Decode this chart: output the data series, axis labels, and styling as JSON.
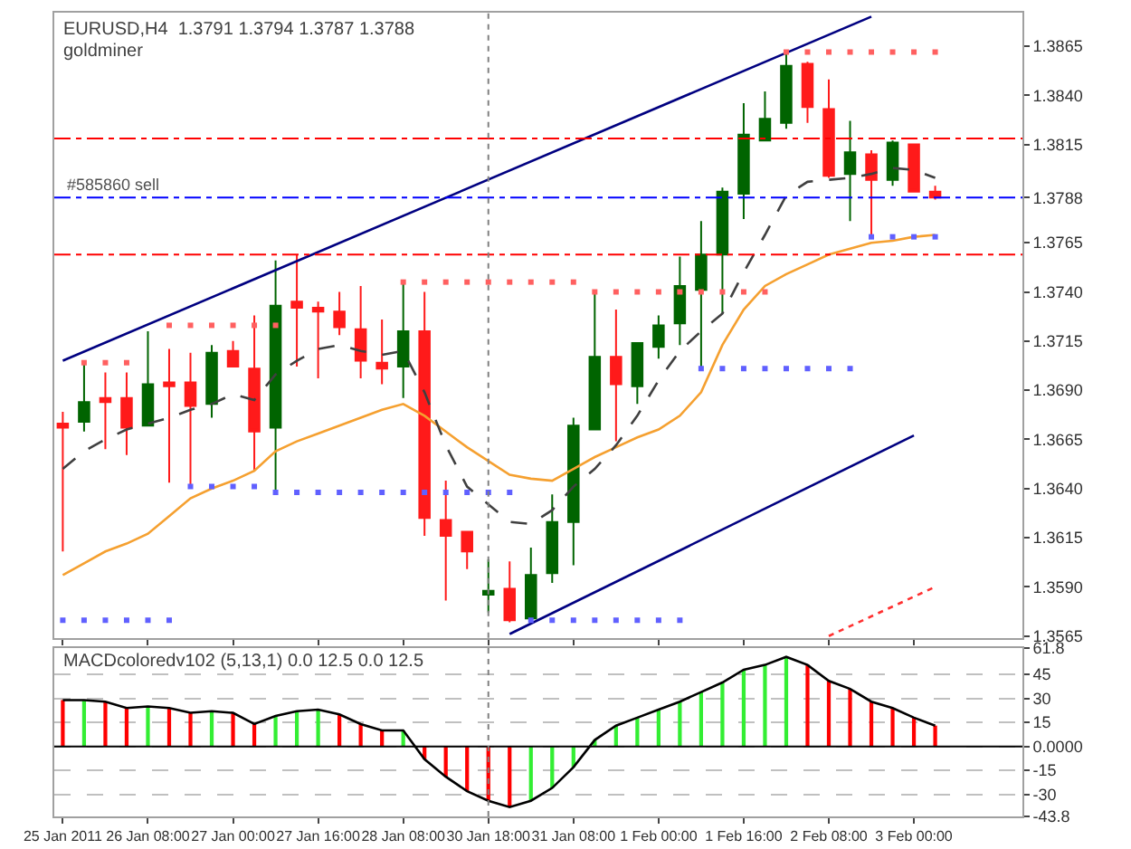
{
  "chart_data": [
    {
      "type": "candlestick",
      "title": "EURUSD,H4  1.3791 1.3794 1.3787 1.3788",
      "subtitle": "goldminer",
      "categories": [
        "25 Jan 2011",
        null,
        null,
        null,
        "26 Jan 08:00",
        null,
        null,
        null,
        "27 Jan 00:00",
        null,
        null,
        null,
        "27 Jan 16:00",
        null,
        null,
        null,
        "28 Jan 08:00",
        null,
        null,
        null,
        "30 Jan 18:00",
        null,
        null,
        null,
        "31 Jan 08:00",
        null,
        null,
        null,
        "1 Feb 00:00",
        null,
        null,
        null,
        "1 Feb 16:00",
        null,
        null,
        null,
        "2 Feb 08:00",
        null,
        null,
        null,
        "3 Feb 00:00",
        null
      ],
      "ohlc": [
        [
          1.3673,
          1.3679,
          1.3608,
          1.3671
        ],
        [
          1.3674,
          1.3704,
          1.3669,
          1.3684
        ],
        [
          1.3686,
          1.3699,
          1.366,
          1.3684
        ],
        [
          1.3686,
          1.3699,
          1.3657,
          1.3671
        ],
        [
          1.3672,
          1.372,
          1.3672,
          1.3693
        ],
        [
          1.3694,
          1.3711,
          1.3643,
          1.3692
        ],
        [
          1.3694,
          1.3709,
          1.3642,
          1.3682
        ],
        [
          1.3683,
          1.3713,
          1.3676,
          1.3709
        ],
        [
          1.371,
          1.3715,
          1.3702,
          1.3702
        ],
        [
          1.3701,
          1.3728,
          1.3649,
          1.3669
        ],
        [
          1.3671,
          1.3756,
          1.3638,
          1.3733
        ],
        [
          1.3735,
          1.3759,
          1.3702,
          1.3732
        ],
        [
          1.3732,
          1.3735,
          1.3696,
          1.373
        ],
        [
          1.373,
          1.374,
          1.3718,
          1.3722
        ],
        [
          1.3721,
          1.3743,
          1.3696,
          1.3705
        ],
        [
          1.3704,
          1.3726,
          1.3693,
          1.3701
        ],
        [
          1.3702,
          1.3745,
          1.3686,
          1.372
        ],
        [
          1.372,
          1.374,
          1.3616,
          1.3625
        ],
        [
          1.3624,
          1.3644,
          1.3583,
          1.3616
        ],
        [
          1.3618,
          1.3618,
          1.3599,
          1.3608
        ],
        [
          1.3586,
          1.3604,
          1.3577,
          1.3588
        ],
        [
          1.3589,
          1.3603,
          1.3572,
          1.3573
        ],
        [
          1.3574,
          1.361,
          1.3574,
          1.3596
        ],
        [
          1.3597,
          1.3637,
          1.3592,
          1.3623
        ],
        [
          1.3623,
          1.3676,
          1.3601,
          1.3672
        ],
        [
          1.367,
          1.374,
          1.367,
          1.3707
        ],
        [
          1.3707,
          1.3731,
          1.3664,
          1.3693
        ],
        [
          1.3692,
          1.3714,
          1.3683,
          1.3714
        ],
        [
          1.3712,
          1.3728,
          1.3706,
          1.3723
        ],
        [
          1.3724,
          1.3758,
          1.3713,
          1.3743
        ],
        [
          1.3741,
          1.3776,
          1.37,
          1.3759
        ],
        [
          1.3759,
          1.3793,
          1.3729,
          1.3791
        ],
        [
          1.379,
          1.3836,
          1.3777,
          1.382
        ],
        [
          1.3817,
          1.3842,
          1.3817,
          1.3828
        ],
        [
          1.3826,
          1.3862,
          1.3823,
          1.3855
        ],
        [
          1.3856,
          1.3857,
          1.3826,
          1.3834
        ],
        [
          1.3833,
          1.3848,
          1.3798,
          1.3799
        ],
        [
          1.38,
          1.3827,
          1.3776,
          1.3811
        ],
        [
          1.381,
          1.3812,
          1.3768,
          1.3797
        ],
        [
          1.3797,
          1.3817,
          1.3794,
          1.3816
        ],
        [
          1.3815,
          1.3815,
          1.3791,
          1.3791
        ],
        [
          1.3791,
          1.3794,
          1.3787,
          1.3788
        ]
      ],
      "colors": [
        "#ff1a1a",
        "#006400",
        "#ff1a1a",
        "#ff1a1a",
        "#006400",
        "#ff1a1a",
        "#ff1a1a",
        "#006400",
        "#ff1a1a",
        "#ff1a1a",
        "#006400",
        "#ff1a1a",
        "#ff1a1a",
        "#ff1a1a",
        "#ff1a1a",
        "#ff1a1a",
        "#006400",
        "#ff1a1a",
        "#ff1a1a",
        "#ff1a1a",
        "#006400",
        "#ff1a1a",
        "#006400",
        "#006400",
        "#006400",
        "#006400",
        "#ff1a1a",
        "#006400",
        "#006400",
        "#006400",
        "#006400",
        "#006400",
        "#006400",
        "#006400",
        "#006400",
        "#ff1a1a",
        "#ff1a1a",
        "#006400",
        "#ff1a1a",
        "#006400",
        "#ff1a1a",
        "#ff1a1a"
      ],
      "series": [
        {
          "type": "line",
          "color": "#f5a030",
          "line_style": "solid",
          "values": [
            1.3596,
            1.3602,
            1.3608,
            1.3612,
            1.3617,
            1.3626,
            1.3635,
            1.364,
            1.3644,
            1.3649,
            1.3659,
            1.3664,
            1.3668,
            1.3672,
            1.3676,
            1.368,
            1.3683,
            1.3677,
            1.3669,
            1.3661,
            1.3654,
            1.3647,
            1.3645,
            1.3644,
            1.365,
            1.3656,
            1.3661,
            1.3666,
            1.367,
            1.3677,
            1.3689,
            1.3713,
            1.3731,
            1.3743,
            1.3749,
            1.3754,
            1.3759,
            1.3762,
            1.3765,
            1.3766,
            1.3768,
            1.3769
          ]
        },
        {
          "type": "line",
          "color": "#404040",
          "line_style": "dashed",
          "values": [
            1.365,
            1.3659,
            1.3665,
            1.367,
            1.3673,
            1.3676,
            1.368,
            1.3683,
            1.3688,
            1.3685,
            1.3698,
            1.3705,
            1.3711,
            1.3713,
            1.371,
            1.3708,
            1.371,
            1.3689,
            1.3662,
            1.3641,
            1.3632,
            1.3623,
            1.3622,
            1.3629,
            1.3641,
            1.365,
            1.3662,
            1.3677,
            1.3695,
            1.371,
            1.372,
            1.3729,
            1.375,
            1.3769,
            1.3789,
            1.3796,
            1.3797,
            1.3798,
            1.38,
            1.3803,
            1.3802,
            1.3798
          ]
        },
        {
          "type": "line",
          "color": "#000080",
          "line_style": "solid",
          "values": [
            1.3705,
            null,
            null,
            null,
            null,
            null,
            null,
            null,
            null,
            null,
            null,
            null,
            null,
            null,
            null,
            null,
            null,
            null,
            null,
            null,
            null,
            null,
            null,
            null,
            null,
            null,
            null,
            null,
            null,
            null,
            null,
            null,
            null,
            null,
            null,
            null,
            null,
            null,
            1.388,
            null,
            null,
            null
          ]
        },
        {
          "type": "line",
          "color": "#000080",
          "line_style": "solid",
          "values": [
            null,
            null,
            null,
            null,
            null,
            null,
            null,
            null,
            null,
            null,
            null,
            null,
            null,
            null,
            null,
            null,
            null,
            null,
            null,
            null,
            null,
            1.3566,
            null,
            null,
            null,
            null,
            null,
            null,
            null,
            null,
            null,
            null,
            null,
            null,
            null,
            null,
            null,
            null,
            null,
            null,
            1.3667,
            null
          ]
        },
        {
          "type": "line",
          "color": "#ff3030",
          "line_style": "dotted",
          "values": [
            null,
            null,
            null,
            null,
            null,
            null,
            null,
            null,
            null,
            null,
            null,
            null,
            null,
            null,
            null,
            null,
            null,
            null,
            null,
            null,
            null,
            null,
            null,
            null,
            null,
            null,
            null,
            null,
            null,
            null,
            null,
            null,
            null,
            null,
            null,
            null,
            1.3565,
            null,
            null,
            null,
            null,
            1.359
          ]
        },
        {
          "type": "scatter",
          "color": "#ff6060",
          "marker": "square",
          "values": [
            null,
            1.3704,
            1.3704,
            1.3704,
            null,
            1.3723,
            1.3723,
            1.3723,
            1.3723,
            1.3723,
            1.3723,
            null,
            null,
            null,
            null,
            null,
            1.3745,
            1.3745,
            1.3745,
            1.3745,
            1.3745,
            1.3745,
            1.3745,
            1.3745,
            1.3745,
            1.374,
            1.374,
            1.374,
            1.374,
            1.374,
            1.374,
            1.374,
            1.374,
            1.374,
            1.3862,
            1.3862,
            1.3862,
            1.3862,
            1.3862,
            1.3862,
            1.3862,
            1.3862
          ]
        },
        {
          "type": "scatter",
          "color": "#6060ff",
          "marker": "square",
          "values": [
            1.3573,
            1.3573,
            1.3573,
            1.3573,
            1.3573,
            1.3573,
            1.3641,
            1.3641,
            1.3641,
            1.3641,
            1.3638,
            1.3638,
            1.3638,
            1.3638,
            1.3638,
            1.3638,
            1.3638,
            1.3638,
            1.3638,
            1.3638,
            1.3638,
            1.3638,
            1.3573,
            1.3573,
            1.3573,
            1.3573,
            1.3573,
            1.3573,
            1.3573,
            1.3573,
            1.3701,
            1.3701,
            1.3701,
            1.3701,
            1.3701,
            1.3701,
            1.3701,
            1.3701,
            1.3768,
            1.3768,
            1.3768,
            1.3768
          ]
        }
      ],
      "ylim": [
        1.3564,
        1.3882
      ],
      "yticks": [
        1.3565,
        {
          "value": 1.359,
          "label": "1.3590"
        },
        1.3615,
        {
          "value": 1.364,
          "label": "1.3640"
        },
        1.3665,
        {
          "value": 1.369,
          "label": "1.3690"
        },
        1.3715,
        {
          "value": 1.374,
          "label": "1.3740"
        },
        1.3765,
        {
          "value": 1.3788,
          "label": "1.3788"
        },
        1.3815,
        {
          "value": 1.384,
          "label": "1.3840"
        },
        1.3865
      ],
      "ref_lines": [
        {
          "axis": "y",
          "value": 1.3818,
          "color": "#ff0000",
          "line_style": "dashed"
        },
        {
          "axis": "y",
          "value": 1.3788,
          "label": "#585860 sell",
          "color": "#0000ff",
          "line_style": "dashed"
        },
        {
          "axis": "y",
          "value": 1.3759,
          "color": "#ff0000",
          "line_style": "dashed"
        },
        {
          "axis": "x",
          "value": "30 Jan 18:00",
          "color": "#808080",
          "line_style": "dotted"
        }
      ],
      "tick_labels": "y"
    },
    {
      "type": "bar",
      "title": "MACDcoloredv102 (5,13,1) 0.0 12.5 0.0 12.5",
      "categories": [
        "25 Jan 2011",
        null,
        null,
        null,
        "26 Jan 08:00",
        null,
        null,
        null,
        "27 Jan 00:00",
        null,
        null,
        null,
        "27 Jan 16:00",
        null,
        null,
        null,
        "28 Jan 08:00",
        null,
        null,
        null,
        "30 Jan 18:00",
        null,
        null,
        null,
        "31 Jan 08:00",
        null,
        null,
        null,
        "1 Feb 00:00",
        null,
        null,
        null,
        "1 Feb 16:00",
        null,
        null,
        null,
        "2 Feb 08:00",
        null,
        null,
        null,
        "3 Feb 00:00",
        null
      ],
      "values": [
        29,
        29,
        28,
        24,
        25,
        24,
        21,
        22,
        21,
        14,
        19,
        22,
        23,
        20,
        14,
        10,
        10,
        -8,
        -19,
        -28,
        -34,
        -38,
        -34,
        -26,
        -13,
        4,
        13,
        18,
        23,
        28,
        34,
        40,
        48,
        51,
        56,
        51,
        41,
        36,
        28,
        24,
        18,
        13
      ],
      "colors": [
        "#ff0000",
        "#33ee33",
        "#ff0000",
        "#ff0000",
        "#33ee33",
        "#ff0000",
        "#ff0000",
        "#33ee33",
        "#ff0000",
        "#ff0000",
        "#33ee33",
        "#33ee33",
        "#33ee33",
        "#ff0000",
        "#ff0000",
        "#ff0000",
        "#33ee33",
        "#ff0000",
        "#ff0000",
        "#ff0000",
        "#ff0000",
        "#ff0000",
        "#33ee33",
        "#33ee33",
        "#33ee33",
        "#33ee33",
        "#33ee33",
        "#33ee33",
        "#33ee33",
        "#33ee33",
        "#33ee33",
        "#33ee33",
        "#33ee33",
        "#33ee33",
        "#33ee33",
        "#ff0000",
        "#ff0000",
        "#ff0000",
        "#ff0000",
        "#ff0000",
        "#ff0000",
        "#ff0000"
      ],
      "series": [
        {
          "type": "line",
          "color": "#000000",
          "line_style": "solid",
          "values": [
            29,
            29,
            28,
            24,
            25,
            24,
            21,
            22,
            21,
            14,
            19,
            22,
            23,
            20,
            14,
            10,
            10,
            -8,
            -19,
            -28,
            -34,
            -38,
            -34,
            -26,
            -13,
            4,
            13,
            18,
            23,
            28,
            34,
            40,
            48,
            51,
            56,
            51,
            41,
            36,
            28,
            24,
            18,
            13
          ]
        }
      ],
      "ylim": [
        -43.8,
        61.8
      ],
      "yticks": [
        -43.8,
        -30,
        -15,
        {
          "value": 0,
          "label": "0.0000"
        },
        15,
        30,
        45,
        61.8
      ],
      "grid": "y",
      "ref_lines": [
        {
          "axis": "y",
          "value": 0,
          "color": "#000000",
          "line_style": "solid"
        },
        {
          "axis": "x",
          "value": "30 Jan 18:00",
          "color": "#808080",
          "line_style": "dotted"
        }
      ]
    }
  ]
}
